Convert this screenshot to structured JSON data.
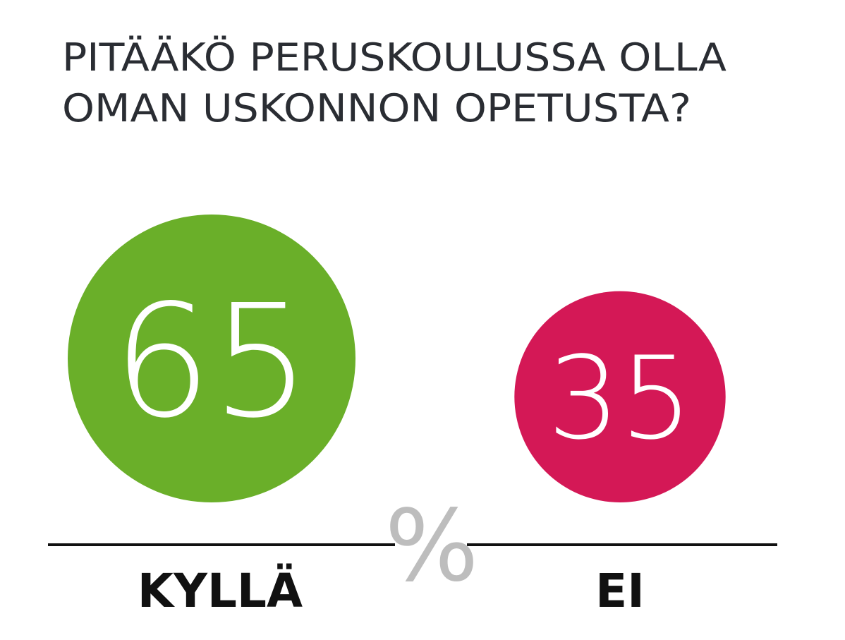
{
  "chart_data": {
    "type": "proportional-circles",
    "title": [
      "PITÄÄKÖ PERUSKOULUSSA OLLA",
      "OMAN USKONNON OPETUSTA?"
    ],
    "categories": [
      "KYLLÄ",
      "EI"
    ],
    "values": [
      65,
      35
    ],
    "colors": [
      "#6aaf29",
      "#d41856"
    ],
    "unit": "%"
  }
}
